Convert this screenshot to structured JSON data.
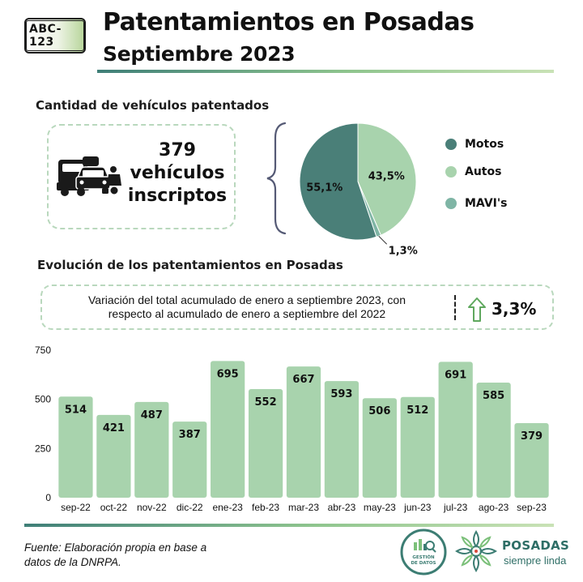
{
  "header": {
    "plate_text": "ABC-123",
    "title": "Patentamientos en Posadas",
    "subtitle": "Septiembre 2023"
  },
  "section1": {
    "heading": "Cantidad de vehículos patentados",
    "count_line1": "379",
    "count_line2": "vehículos",
    "count_line3": "inscriptos"
  },
  "pie": {
    "slices": [
      {
        "name": "Motos",
        "label": "55,1%",
        "value": 55.1,
        "color": "#4a7f78"
      },
      {
        "name": "Autos",
        "label": "43,5%",
        "value": 43.5,
        "color": "#a8d3ad"
      },
      {
        "name": "MAVI's",
        "label": "1,3%",
        "value": 1.3,
        "color": "#7fb5a5"
      }
    ]
  },
  "section2": {
    "heading": "Evolución de los patentamientos en Posadas",
    "variation_text_1": "Variación del total acumulado de enero a septiembre 2023, con",
    "variation_text_2": "respecto al acumulado de enero a septiembre del 2022",
    "variation_value": "3,3%"
  },
  "chart_data": {
    "type": "bar",
    "categories": [
      "sep-22",
      "oct-22",
      "nov-22",
      "dic-22",
      "ene-23",
      "feb-23",
      "mar-23",
      "abr-23",
      "may-23",
      "jun-23",
      "jul-23",
      "ago-23",
      "sep-23"
    ],
    "values": [
      514,
      421,
      487,
      387,
      695,
      552,
      667,
      593,
      506,
      512,
      691,
      585,
      379
    ],
    "value_labels": [
      "514",
      "421",
      "487",
      "387",
      "695",
      "552",
      "667",
      "593",
      "506",
      "512",
      "691",
      "585",
      "379"
    ],
    "ylim": [
      0,
      750
    ],
    "yticks": [
      0,
      250,
      500,
      750
    ],
    "ytick_labels": [
      "0",
      "250",
      "500",
      "750"
    ],
    "grid": false,
    "bar_color": "#a8d3ad"
  },
  "footer": {
    "source_line1": "Fuente: Elaboración propia en base a",
    "source_line2": "datos de la DNRPA.",
    "gestion_logo_text": "GESTIÓN DE DATOS",
    "posadas_name": "POSADAS",
    "posadas_tagline": "siempre linda"
  },
  "icons": [
    "license-plate-icon",
    "vehicles-icon",
    "arrow-up-icon",
    "gestion-datos-logo",
    "posadas-logo"
  ]
}
